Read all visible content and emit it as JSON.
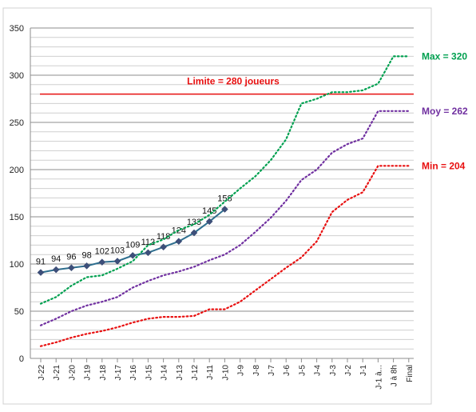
{
  "chart_data": {
    "type": "line",
    "title": "",
    "xlabel": "",
    "ylabel": "",
    "ylim": [
      0,
      350
    ],
    "yticks": [
      0,
      50,
      100,
      150,
      200,
      250,
      300,
      350
    ],
    "grid": true,
    "categories": [
      "J-22",
      "J-21",
      "J-20",
      "J-19",
      "J-18",
      "J-17",
      "J-16",
      "J-15",
      "J-14",
      "J-13",
      "J-12",
      "J-11",
      "J-10",
      "J-9",
      "J-8",
      "J-7",
      "J-6",
      "J-5",
      "J-4",
      "J-3",
      "J-2",
      "J-1",
      "J-1 à...",
      "J à 8h",
      "Final"
    ],
    "series": [
      {
        "name": "",
        "color": "#2e6e8e",
        "style": "solid",
        "values": [
          91,
          94,
          96,
          98,
          102,
          103,
          109,
          112,
          118,
          124,
          133,
          145,
          158,
          null,
          null,
          null,
          null,
          null,
          null,
          null,
          null,
          null,
          null,
          null,
          null
        ],
        "data_labels": [
          "91",
          "94",
          "96",
          "98",
          "102",
          "103",
          "109",
          "112",
          "118",
          "124",
          "133",
          "145",
          "158"
        ]
      },
      {
        "name": "Max = 320",
        "color": "#00a050",
        "style": "dotted",
        "values": [
          58,
          65,
          77,
          86,
          88,
          95,
          103,
          120,
          126,
          136,
          142,
          152,
          166,
          180,
          193,
          210,
          232,
          270,
          275,
          282,
          282,
          284,
          291,
          320,
          320
        ]
      },
      {
        "name": "Moy = 262",
        "color": "#7030a0",
        "style": "dotted",
        "values": [
          35,
          42,
          50,
          56,
          60,
          65,
          75,
          82,
          88,
          92,
          97,
          104,
          110,
          120,
          134,
          149,
          167,
          189,
          200,
          218,
          227,
          233,
          262,
          262,
          262
        ]
      },
      {
        "name": "Min = 204",
        "color": "#e81010",
        "style": "dotted",
        "values": [
          13,
          17,
          22,
          26,
          29,
          33,
          38,
          42,
          44,
          44,
          45,
          52,
          52,
          60,
          72,
          84,
          96,
          107,
          124,
          155,
          168,
          176,
          204,
          204,
          204
        ]
      }
    ],
    "reference_line": {
      "value": 280,
      "label": "Limite = 280 joueurs",
      "color": "#e81010"
    }
  }
}
